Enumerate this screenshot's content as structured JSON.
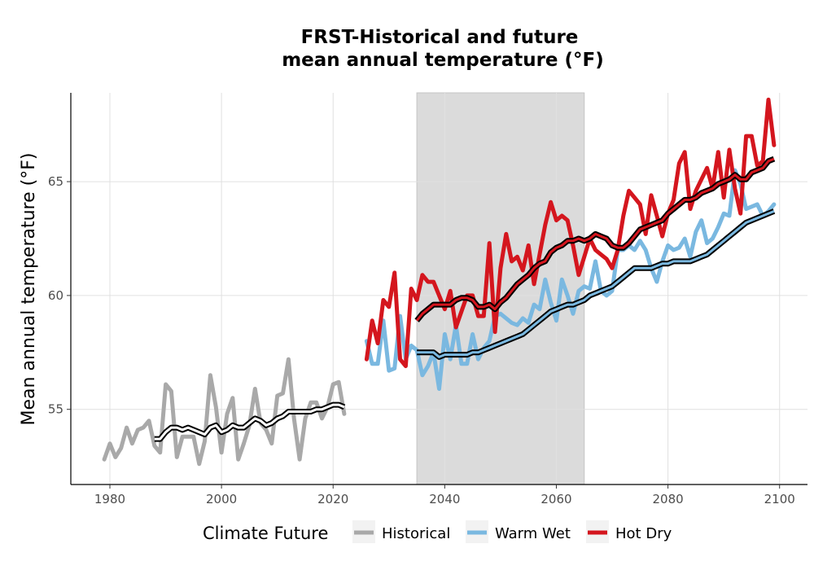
{
  "chart_data": {
    "type": "line",
    "title_lines": [
      "FRST-Historical and future",
      "mean annual temperature (°F)"
    ],
    "xlabel": "",
    "ylabel": "Mean annual temperature (°F)",
    "xlim": [
      1973.0,
      2105.0
    ],
    "ylim": [
      51.7,
      68.9
    ],
    "x_ticks": [
      1980,
      2000,
      2020,
      2040,
      2060,
      2080,
      2100
    ],
    "y_ticks": [
      55,
      60,
      65
    ],
    "x_tick_labels": [
      "1980",
      "2000",
      "2020",
      "2040",
      "2060",
      "2080",
      "2100"
    ],
    "y_tick_labels": [
      "55",
      "60",
      "65"
    ],
    "grid": true,
    "shaded_period": [
      2035,
      2065
    ],
    "legend": {
      "title": "Climate Future",
      "position": "bottom",
      "entries": [
        "Historical",
        "Warm Wet",
        "Hot Dry"
      ]
    },
    "colors": {
      "historical": "#a9a9a9",
      "warm_wet": "#7ab8e0",
      "hot_dry": "#d4161e",
      "smooth": "#000000",
      "shade": "#d3d3d3",
      "grid": "#e0e0e0"
    },
    "series": [
      {
        "name": "Historical",
        "x": [
          1979,
          1980,
          1981,
          1982,
          1983,
          1984,
          1985,
          1986,
          1987,
          1988,
          1989,
          1990,
          1991,
          1992,
          1993,
          1994,
          1995,
          1996,
          1997,
          1998,
          1999,
          2000,
          2001,
          2002,
          2003,
          2004,
          2005,
          2006,
          2007,
          2008,
          2009,
          2010,
          2011,
          2012,
          2013,
          2014,
          2015,
          2016,
          2017,
          2018,
          2019,
          2020,
          2021,
          2022
        ],
        "values": [
          52.8,
          53.5,
          52.9,
          53.3,
          54.2,
          53.5,
          54.1,
          54.2,
          54.5,
          53.4,
          53.1,
          56.1,
          55.8,
          52.9,
          53.8,
          53.8,
          53.8,
          52.6,
          53.6,
          56.5,
          55.1,
          53.1,
          54.8,
          55.5,
          52.8,
          53.5,
          54.3,
          55.9,
          54.4,
          54.1,
          53.5,
          55.6,
          55.7,
          57.2,
          54.6,
          52.8,
          54.6,
          55.3,
          55.3,
          54.6,
          55.1,
          56.1,
          56.2,
          54.8
        ]
      },
      {
        "name": "Historical smooth",
        "x": [
          1988,
          1989,
          1990,
          1991,
          1992,
          1993,
          1994,
          1995,
          1996,
          1997,
          1998,
          1999,
          2000,
          2001,
          2002,
          2003,
          2004,
          2005,
          2006,
          2007,
          2008,
          2009,
          2010,
          2011,
          2012,
          2013,
          2014,
          2015,
          2016,
          2017,
          2018,
          2019,
          2020,
          2021,
          2022
        ],
        "values": [
          53.7,
          53.7,
          54.0,
          54.2,
          54.2,
          54.1,
          54.2,
          54.1,
          54.0,
          53.9,
          54.2,
          54.3,
          54.0,
          54.1,
          54.3,
          54.2,
          54.2,
          54.4,
          54.6,
          54.5,
          54.3,
          54.4,
          54.6,
          54.7,
          54.9,
          54.9,
          54.9,
          54.9,
          54.9,
          55.0,
          55.0,
          55.1,
          55.2,
          55.2,
          55.1
        ]
      },
      {
        "name": "Warm Wet",
        "x": [
          2026,
          2027,
          2028,
          2029,
          2030,
          2031,
          2032,
          2033,
          2034,
          2035,
          2036,
          2037,
          2038,
          2039,
          2040,
          2041,
          2042,
          2043,
          2044,
          2045,
          2046,
          2047,
          2048,
          2049,
          2050,
          2051,
          2052,
          2053,
          2054,
          2055,
          2056,
          2057,
          2058,
          2059,
          2060,
          2061,
          2062,
          2063,
          2064,
          2065,
          2066,
          2067,
          2068,
          2069,
          2070,
          2071,
          2072,
          2073,
          2074,
          2075,
          2076,
          2077,
          2078,
          2079,
          2080,
          2081,
          2082,
          2083,
          2084,
          2085,
          2086,
          2087,
          2088,
          2089,
          2090,
          2091,
          2092,
          2093,
          2094,
          2095,
          2096,
          2097,
          2098,
          2099
        ],
        "values": [
          58.0,
          57.0,
          57.0,
          58.9,
          56.7,
          56.8,
          59.1,
          57.2,
          57.8,
          57.6,
          56.5,
          56.9,
          57.5,
          55.9,
          58.3,
          57.2,
          58.7,
          57.0,
          57.0,
          58.3,
          57.2,
          57.7,
          58.0,
          59.1,
          59.2,
          59.0,
          58.8,
          58.7,
          59.0,
          58.8,
          59.6,
          59.4,
          60.7,
          59.7,
          58.9,
          60.7,
          60.0,
          59.2,
          60.2,
          60.4,
          60.3,
          61.5,
          60.2,
          60.0,
          60.2,
          62.0,
          62.0,
          62.2,
          62.0,
          62.4,
          62.0,
          61.2,
          60.6,
          61.5,
          62.2,
          62.0,
          62.1,
          62.5,
          61.7,
          62.8,
          63.3,
          62.3,
          62.5,
          63.0,
          63.6,
          63.5,
          65.5,
          64.9,
          63.8,
          63.9,
          64.0,
          63.5,
          63.7,
          64.0
        ]
      },
      {
        "name": "Warm Wet smooth",
        "x": [
          2035,
          2036,
          2037,
          2038,
          2039,
          2040,
          2041,
          2042,
          2043,
          2044,
          2045,
          2046,
          2047,
          2048,
          2049,
          2050,
          2051,
          2052,
          2053,
          2054,
          2055,
          2056,
          2057,
          2058,
          2059,
          2060,
          2061,
          2062,
          2063,
          2064,
          2065,
          2066,
          2067,
          2068,
          2069,
          2070,
          2071,
          2072,
          2073,
          2074,
          2075,
          2076,
          2077,
          2078,
          2079,
          2080,
          2081,
          2082,
          2083,
          2084,
          2085,
          2086,
          2087,
          2088,
          2089,
          2090,
          2091,
          2092,
          2093,
          2094,
          2095,
          2096,
          2097,
          2098,
          2099
        ],
        "values": [
          57.5,
          57.5,
          57.5,
          57.5,
          57.3,
          57.4,
          57.4,
          57.4,
          57.4,
          57.4,
          57.5,
          57.5,
          57.6,
          57.7,
          57.8,
          57.9,
          58.0,
          58.1,
          58.2,
          58.3,
          58.5,
          58.7,
          58.9,
          59.1,
          59.3,
          59.4,
          59.5,
          59.6,
          59.6,
          59.7,
          59.8,
          60.0,
          60.1,
          60.2,
          60.3,
          60.4,
          60.6,
          60.8,
          61.0,
          61.2,
          61.2,
          61.2,
          61.2,
          61.3,
          61.4,
          61.4,
          61.5,
          61.5,
          61.5,
          61.5,
          61.6,
          61.7,
          61.8,
          62.0,
          62.2,
          62.4,
          62.6,
          62.8,
          63.0,
          63.2,
          63.3,
          63.4,
          63.5,
          63.6,
          63.7
        ]
      },
      {
        "name": "Hot Dry",
        "x": [
          2026,
          2027,
          2028,
          2029,
          2030,
          2031,
          2032,
          2033,
          2034,
          2035,
          2036,
          2037,
          2038,
          2039,
          2040,
          2041,
          2042,
          2043,
          2044,
          2045,
          2046,
          2047,
          2048,
          2049,
          2050,
          2051,
          2052,
          2053,
          2054,
          2055,
          2056,
          2057,
          2058,
          2059,
          2060,
          2061,
          2062,
          2063,
          2064,
          2065,
          2066,
          2067,
          2068,
          2069,
          2070,
          2071,
          2072,
          2073,
          2074,
          2075,
          2076,
          2077,
          2078,
          2079,
          2080,
          2081,
          2082,
          2083,
          2084,
          2085,
          2086,
          2087,
          2088,
          2089,
          2090,
          2091,
          2092,
          2093,
          2094,
          2095,
          2096,
          2097,
          2098,
          2099
        ],
        "values": [
          57.2,
          58.9,
          57.9,
          59.8,
          59.5,
          61.0,
          57.2,
          56.9,
          60.3,
          59.8,
          60.9,
          60.6,
          60.6,
          60.0,
          59.4,
          60.2,
          58.6,
          59.3,
          60.0,
          60.0,
          59.1,
          59.1,
          62.3,
          58.4,
          61.2,
          62.7,
          61.5,
          61.7,
          61.1,
          62.2,
          60.5,
          61.8,
          63.1,
          64.1,
          63.3,
          63.5,
          63.3,
          62.2,
          60.9,
          61.7,
          62.5,
          62.0,
          61.8,
          61.6,
          61.2,
          62.0,
          63.5,
          64.6,
          64.3,
          64.0,
          62.7,
          64.4,
          63.5,
          62.6,
          63.6,
          64.2,
          65.8,
          66.3,
          63.8,
          64.6,
          65.1,
          65.6,
          64.7,
          66.3,
          64.3,
          66.4,
          64.7,
          63.6,
          67.0,
          67.0,
          65.7,
          65.9,
          68.6,
          66.6
        ]
      },
      {
        "name": "Hot Dry smooth",
        "x": [
          2035,
          2036,
          2037,
          2038,
          2039,
          2040,
          2041,
          2042,
          2043,
          2044,
          2045,
          2046,
          2047,
          2048,
          2049,
          2050,
          2051,
          2052,
          2053,
          2054,
          2055,
          2056,
          2057,
          2058,
          2059,
          2060,
          2061,
          2062,
          2063,
          2064,
          2065,
          2066,
          2067,
          2068,
          2069,
          2070,
          2071,
          2072,
          2073,
          2074,
          2075,
          2076,
          2077,
          2078,
          2079,
          2080,
          2081,
          2082,
          2083,
          2084,
          2085,
          2086,
          2087,
          2088,
          2089,
          2090,
          2091,
          2092,
          2093,
          2094,
          2095,
          2096,
          2097,
          2098,
          2099
        ],
        "values": [
          58.9,
          59.2,
          59.4,
          59.6,
          59.6,
          59.6,
          59.6,
          59.8,
          59.9,
          59.9,
          59.8,
          59.5,
          59.5,
          59.6,
          59.4,
          59.7,
          59.9,
          60.2,
          60.5,
          60.7,
          60.9,
          61.2,
          61.4,
          61.5,
          61.9,
          62.1,
          62.2,
          62.4,
          62.4,
          62.5,
          62.4,
          62.5,
          62.7,
          62.6,
          62.5,
          62.2,
          62.1,
          62.1,
          62.3,
          62.6,
          62.9,
          63.0,
          63.1,
          63.2,
          63.3,
          63.6,
          63.8,
          64.0,
          64.2,
          64.2,
          64.3,
          64.5,
          64.6,
          64.7,
          64.9,
          65.0,
          65.1,
          65.3,
          65.1,
          65.1,
          65.4,
          65.5,
          65.6,
          65.9,
          66.0
        ]
      }
    ]
  }
}
